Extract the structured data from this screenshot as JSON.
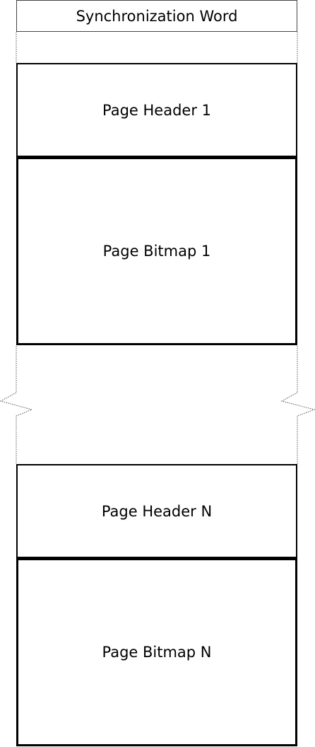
{
  "diagram": {
    "blocks": [
      {
        "id": "sync",
        "label": "Synchronization Word"
      },
      {
        "id": "header1",
        "label": "Page Header 1"
      },
      {
        "id": "bitmap1",
        "label": "Page Bitmap 1"
      },
      {
        "id": "headerN",
        "label": "Page Header N"
      },
      {
        "id": "bitmapN",
        "label": "Page Bitmap N"
      }
    ],
    "colors": {
      "stroke": "#000000",
      "dotted": "#555555",
      "background": "#ffffff"
    }
  }
}
